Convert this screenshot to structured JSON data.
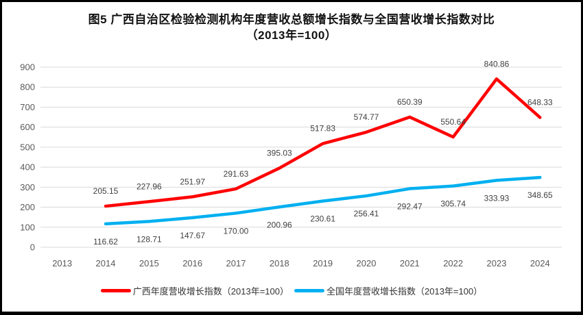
{
  "title": "图5  广西自治区检验检测机构年度营收总额增长指数与全国营收增长指数对比（2013年=100）",
  "chart_data": {
    "type": "line",
    "title": "图5  广西自治区检验检测机构年度营收总额增长指数与全国营收增长指数对比（2013年=100）",
    "categories": [
      "2013",
      "2014",
      "2015",
      "2016",
      "2017",
      "2018",
      "2019",
      "2020",
      "2021",
      "2022",
      "2023",
      "2024"
    ],
    "series": [
      {
        "name": "广西年度营收增长指数（2013年=100）",
        "color": "#ff0000",
        "label_position": "above",
        "values": [
          null,
          205.15,
          227.96,
          251.97,
          291.63,
          395.03,
          517.83,
          574.77,
          650.39,
          550.64,
          840.86,
          648.33
        ]
      },
      {
        "name": "全国年度营收增长指数（2013年=100）",
        "color": "#00b0f0",
        "label_position": "below",
        "values": [
          null,
          116.62,
          128.71,
          147.67,
          170.0,
          200.96,
          230.61,
          256.41,
          292.47,
          305.74,
          333.93,
          348.65
        ]
      }
    ],
    "ylim": [
      0,
      900
    ],
    "ytick_step": 100,
    "yticks": [
      0,
      100,
      200,
      300,
      400,
      500,
      600,
      700,
      800,
      900
    ],
    "grid": "horizontal",
    "legend_position": "bottom",
    "data_label_decimals": 2
  },
  "colors": {
    "series_guangxi": "#ff0000",
    "series_national": "#00b0f0",
    "gridline": "#d9d9d9",
    "axis_text": "#595959",
    "data_label_text": "#404040",
    "title_text": "#111111",
    "frame_border": "#000000"
  }
}
